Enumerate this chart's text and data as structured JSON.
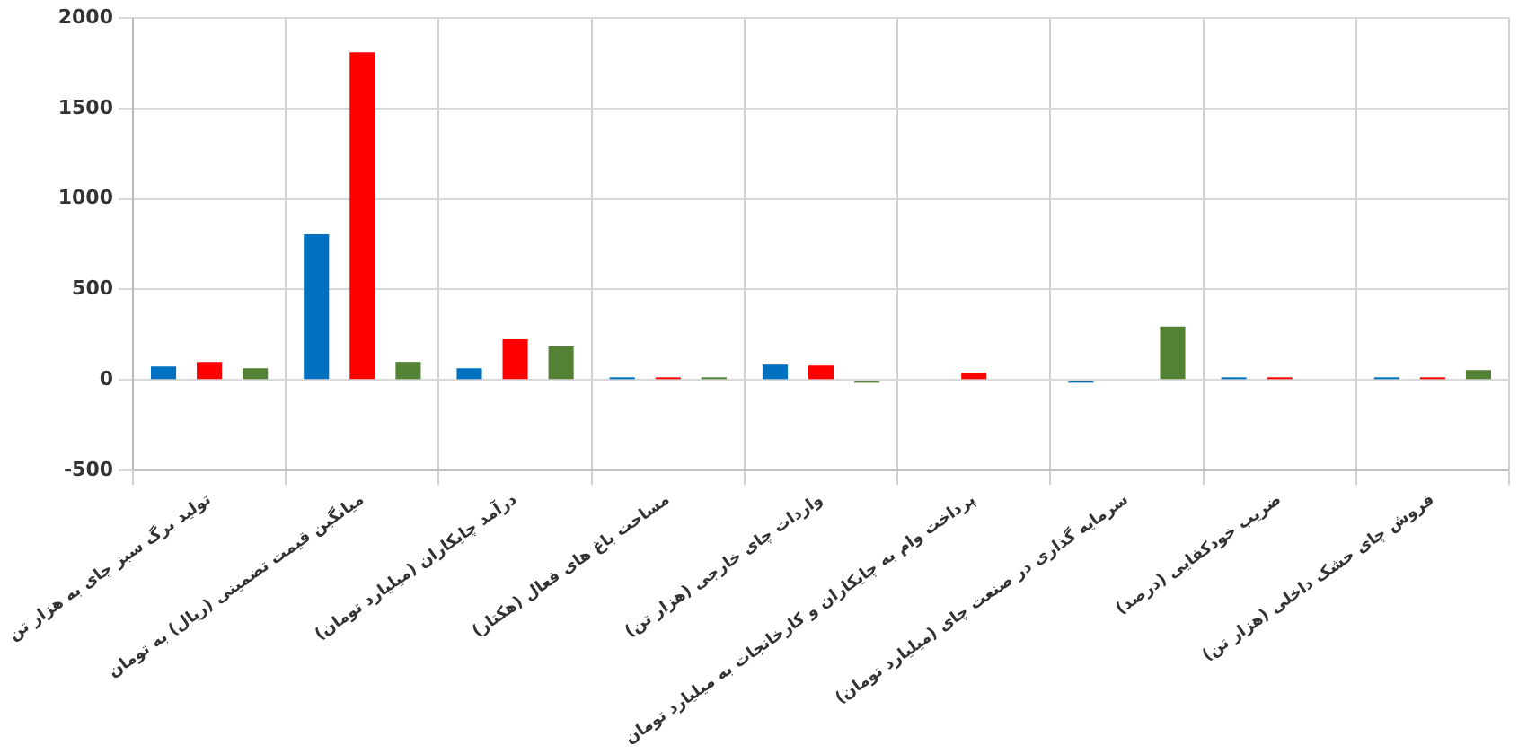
{
  "chart_data": {
    "type": "bar",
    "categories": [
      "تولید برگ سبز چای به هزار تن",
      "میانگین قیمت تضمینی (ریال) به تومان",
      "درآمد چایکاران (میلیارد تومان)",
      "مساحت باغ های فعال (هکتار)",
      "واردات چای خارجی (هزار تن)",
      "پرداخت وام به چایکاران و کارخانجات به میلیارد تومان",
      "سرمایه گذاری در صنعت چای (میلیارد تومان)",
      "ضریب خودکفایی (درصد)",
      "فروش چای خشک داخلی (هزار تن)"
    ],
    "series": [
      {
        "color": "#0070c0",
        "values": [
          75,
          805,
          65,
          15,
          85,
          null,
          -15,
          15,
          15
        ]
      },
      {
        "color": "#ff0000",
        "values": [
          100,
          1810,
          225,
          15,
          80,
          40,
          null,
          15,
          15
        ]
      },
      {
        "color": "#548235",
        "values": [
          65,
          100,
          185,
          15,
          -15,
          null,
          295,
          null,
          55
        ]
      }
    ],
    "ylim": [
      -500,
      2000
    ],
    "yticks": [
      -500,
      0,
      500,
      1000,
      1500,
      2000
    ],
    "grid": true
  }
}
